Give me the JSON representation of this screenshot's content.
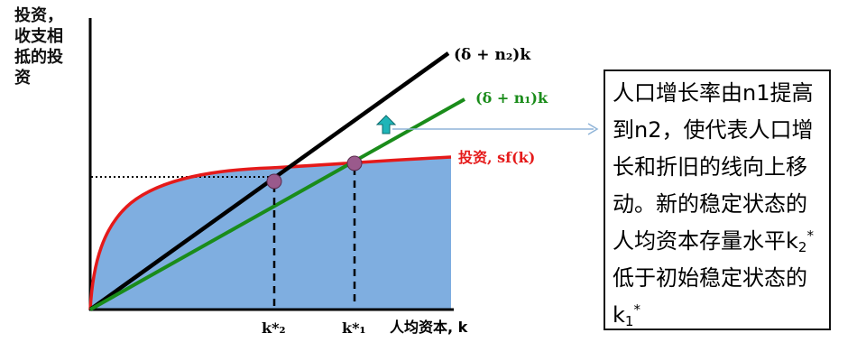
{
  "y_axis_label_lines": [
    "投资，",
    "收支相",
    "抵的投",
    "资"
  ],
  "x_axis_label": "人均资本, k",
  "curves": {
    "line_n2": "(δ + n₂)k",
    "line_n1": "(δ + n₁)k",
    "investment": "投资, sf(k)"
  },
  "tick_labels": {
    "k2": "k*₂",
    "k1": "k*₁"
  },
  "note": {
    "before_k2": "人口增长率由n1提高到n2，使代表人口增长和折旧的线向上移动。新的稳定状态的人均资本存量水平k",
    "k2_sub": "2",
    "k2_sup": "*",
    "middle": "低于初始稳定状态的k",
    "k1_sub": "1",
    "k1_sup": "*"
  },
  "colors": {
    "investment_curve": "#e51a1a",
    "line_n1": "#1a8c1a",
    "line_n2": "#000000",
    "shaded_area": "#7faee0",
    "intersection_point": "#9a5a8c",
    "arrow_up": "#1fb5b8",
    "connector_line": "#8fb4d8"
  }
}
